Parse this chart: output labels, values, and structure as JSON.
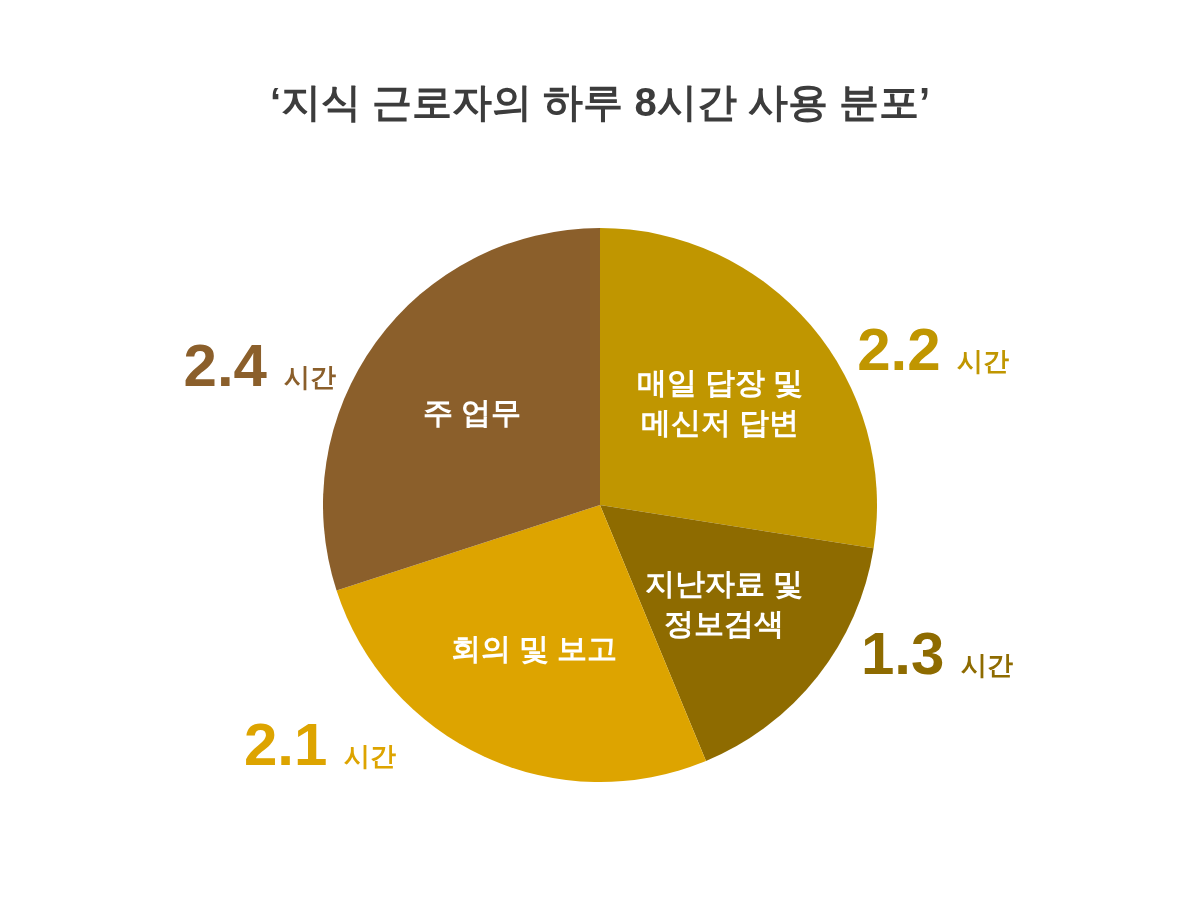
{
  "chart_data": {
    "type": "pie",
    "title": "‘지식 근로자의 하루 8시간 사용 분포’",
    "categories": [
      "매일 답장 및 메신저 답변",
      "지난자료 및 정보검색",
      "회의 및 보고",
      "주 업무"
    ],
    "values": [
      2.2,
      1.3,
      2.1,
      2.4
    ],
    "colors": [
      "#c09600",
      "#8e6b00",
      "#dda400",
      "#8b5f2b"
    ],
    "value_labels": [
      "2.2 시간",
      "1.3 시간",
      "2.1 시간",
      "2.4 시간"
    ]
  }
}
